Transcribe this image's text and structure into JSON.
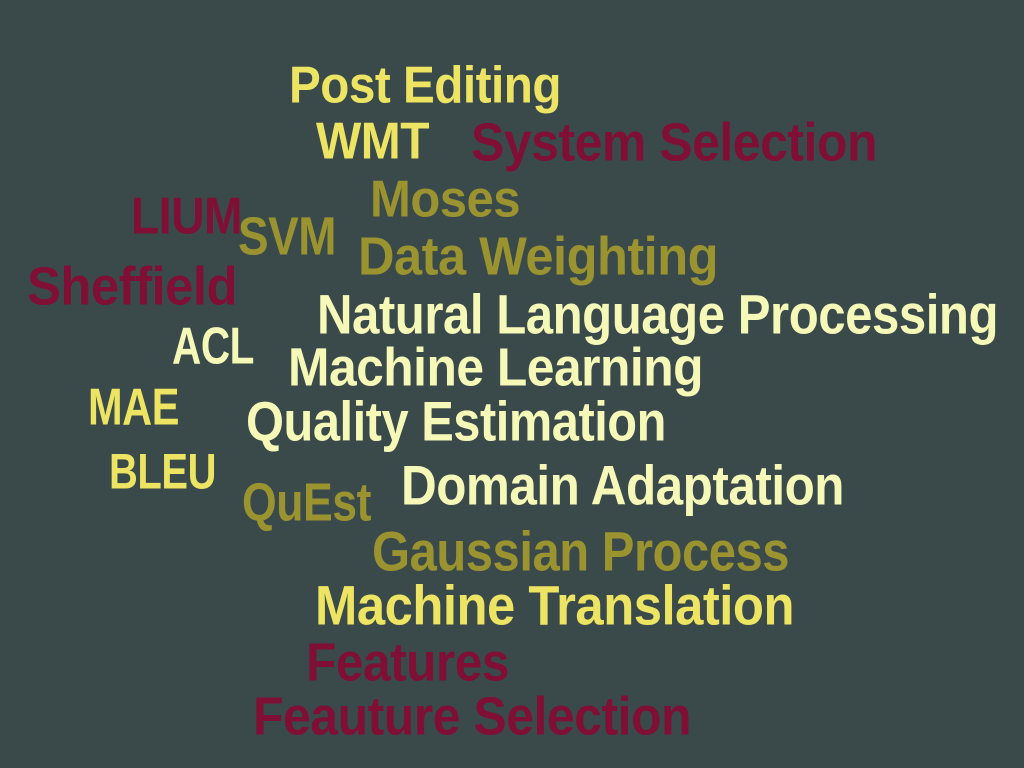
{
  "colors": {
    "background": "#3a4a4a",
    "cream": "#f6f8b8",
    "yellow": "#ece462",
    "olive": "#9a9330",
    "maroon": "#7f0f35"
  },
  "words": [
    {
      "text": "Post Editing",
      "color": "yellow"
    },
    {
      "text": "WMT",
      "color": "yellow"
    },
    {
      "text": "System Selection",
      "color": "maroon"
    },
    {
      "text": "Moses",
      "color": "olive"
    },
    {
      "text": "LIUM",
      "color": "maroon"
    },
    {
      "text": "SVM",
      "color": "olive"
    },
    {
      "text": "Data Weighting",
      "color": "olive"
    },
    {
      "text": "Sheffield",
      "color": "maroon"
    },
    {
      "text": "Natural Language Processing",
      "color": "cream"
    },
    {
      "text": "ACL",
      "color": "cream"
    },
    {
      "text": "Machine Learning",
      "color": "cream"
    },
    {
      "text": "MAE",
      "color": "yellow"
    },
    {
      "text": "Quality Estimation",
      "color": "cream"
    },
    {
      "text": "BLEU",
      "color": "yellow"
    },
    {
      "text": "QuEst",
      "color": "olive"
    },
    {
      "text": "Domain Adaptation",
      "color": "cream"
    },
    {
      "text": "Gaussian Process",
      "color": "olive"
    },
    {
      "text": "Machine Translation",
      "color": "yellow"
    },
    {
      "text": "Features",
      "color": "maroon"
    },
    {
      "text": "Feauture Selection",
      "color": "maroon"
    }
  ]
}
